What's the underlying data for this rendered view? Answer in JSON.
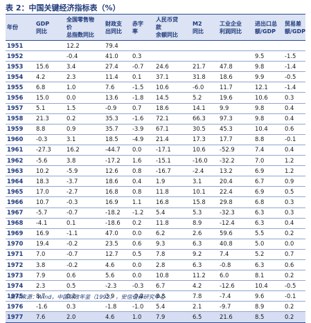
{
  "title": "表 2：中国关键经济指标表（%）",
  "columns": [
    {
      "lines": [
        "年份"
      ]
    },
    {
      "lines": [
        "GDP",
        "同比"
      ]
    },
    {
      "lines": [
        "全国零售物",
        "价",
        "总指数同比"
      ]
    },
    {
      "lines": [
        "财政支",
        "出同比"
      ]
    },
    {
      "lines": [
        "赤字",
        "率"
      ]
    },
    {
      "lines": [
        "人民币贷",
        "款",
        "余额同比"
      ]
    },
    {
      "lines": [
        "M2",
        "同比"
      ]
    },
    {
      "lines": [
        "工业企业",
        "利润同比"
      ]
    },
    {
      "lines": [
        "进出口总",
        "额/GDP"
      ]
    },
    {
      "lines": [
        "贸易差",
        "额/GDP"
      ]
    }
  ],
  "rows": [
    [
      "1951",
      "",
      "12.2",
      "79.4",
      "",
      "",
      "",
      "",
      "",
      ""
    ],
    [
      "1952",
      "",
      "-0.4",
      "41.0",
      "0.3",
      "",
      "",
      "",
      "9.5",
      "-1.5"
    ],
    [
      "1953",
      "15.6",
      "3.4",
      "27.4",
      "-0.7",
      "24.6",
      "21.7",
      "47.8",
      "9.8",
      "-1.4"
    ],
    [
      "1954",
      "4.2",
      "2.3",
      "11.4",
      "0.1",
      "37.1",
      "31.8",
      "18.6",
      "9.9",
      "-0.5"
    ],
    [
      "1955",
      "6.8",
      "1.0",
      "7.6",
      "-1.5",
      "10.6",
      "-6.0",
      "11.7",
      "12.1",
      "-1.4"
    ],
    [
      "1956",
      "15.0",
      "0.0",
      "13.6",
      "-1.8",
      "14.5",
      "5.2",
      "19.6",
      "10.6",
      "0.3"
    ],
    [
      "1957",
      "5.1",
      "1.5",
      "-0.9",
      "0.7",
      "18.6",
      "14.1",
      "9.9",
      "9.8",
      "0.4"
    ],
    [
      "1958",
      "21.3",
      "0.2",
      "35.3",
      "-1.6",
      "72.1",
      "66.3",
      "97.3",
      "9.8",
      "0.4"
    ],
    [
      "1959",
      "8.8",
      "0.9",
      "35.7",
      "-3.9",
      "67.1",
      "30.5",
      "45.3",
      "10.4",
      "0.6"
    ],
    [
      "1960",
      "-0.3",
      "3.1",
      "18.5",
      "-4.9",
      "21.4",
      "17.3",
      "17.7",
      "8.8",
      "-0.1"
    ],
    [
      "1961",
      "-27.3",
      "16.2",
      "-44.7",
      "0.0",
      "-17.1",
      "10.6",
      "-52.9",
      "7.4",
      "0.4"
    ],
    [
      "1962",
      "-5.6",
      "3.8",
      "-17.2",
      "1.6",
      "-15.1",
      "-16.0",
      "-32.2",
      "7.0",
      "1.2"
    ],
    [
      "1963",
      "10.2",
      "-5.9",
      "12.6",
      "0.8",
      "-16.7",
      "-2.4",
      "13.2",
      "6.9",
      "1.2"
    ],
    [
      "1964",
      "18.3",
      "-3.7",
      "18.6",
      "0.4",
      "1.9",
      "3.1",
      "20.4",
      "6.7",
      "0.9"
    ],
    [
      "1965",
      "17.0",
      "-2.7",
      "16.8",
      "0.8",
      "11.8",
      "10.1",
      "22.4",
      "6.9",
      "0.5"
    ],
    [
      "1966",
      "10.7",
      "-0.3",
      "16.9",
      "1.1",
      "16.8",
      "15.8",
      "29.8",
      "6.8",
      "0.3"
    ],
    [
      "1967",
      "-5.7",
      "-0.7",
      "-18.2",
      "-1.2",
      "5.4",
      "5.3",
      "-32.3",
      "6.3",
      "0.3"
    ],
    [
      "1968",
      "-4.1",
      "0.1",
      "-18.6",
      "0.2",
      "11.8",
      "8.9",
      "-12.4",
      "6.3",
      "0.4"
    ],
    [
      "1969",
      "16.9",
      "-1.1",
      "47.0",
      "0.0",
      "6.2",
      "2.6",
      "59.6",
      "5.5",
      "0.2"
    ],
    [
      "1970",
      "19.4",
      "-0.2",
      "23.5",
      "0.6",
      "9.3",
      "6.3",
      "40.8",
      "5.0",
      "0.0"
    ],
    [
      "1971",
      "7.0",
      "-0.7",
      "12.7",
      "0.5",
      "7.8",
      "9.2",
      "7.4",
      "5.2",
      "0.7"
    ],
    [
      "1972",
      "3.8",
      "-0.2",
      "4.6",
      "0.0",
      "2.8",
      "6.3",
      "-0.8",
      "6.3",
      "0.6"
    ],
    [
      "1973",
      "7.9",
      "0.6",
      "5.6",
      "0.0",
      "10.8",
      "11.2",
      "6.0",
      "8.1",
      "0.2"
    ],
    [
      "1974",
      "2.3",
      "0.5",
      "-2.3",
      "-0.3",
      "6.7",
      "4.2",
      "-12.6",
      "10.4",
      "-0.5"
    ],
    [
      "1975",
      "8.7",
      "0.2",
      "3.9",
      "-0.2",
      "8.8",
      "7.8",
      "-7.4",
      "9.6",
      "-0.1"
    ],
    [
      "1976",
      "-1.6",
      "0.3",
      "-1.8",
      "-1.0",
      "5.4",
      "2.1",
      "-9.7",
      "8.9",
      "0.2"
    ],
    [
      "1977",
      "7.6",
      "2.0",
      "4.6",
      "1.0",
      "7.9",
      "6.5",
      "21.6",
      "8.5",
      "0.2"
    ]
  ],
  "highlight_row_index": 26,
  "source_note": "资料来源：Wind，中国财政年鉴（1992），安信证券研究中心"
}
